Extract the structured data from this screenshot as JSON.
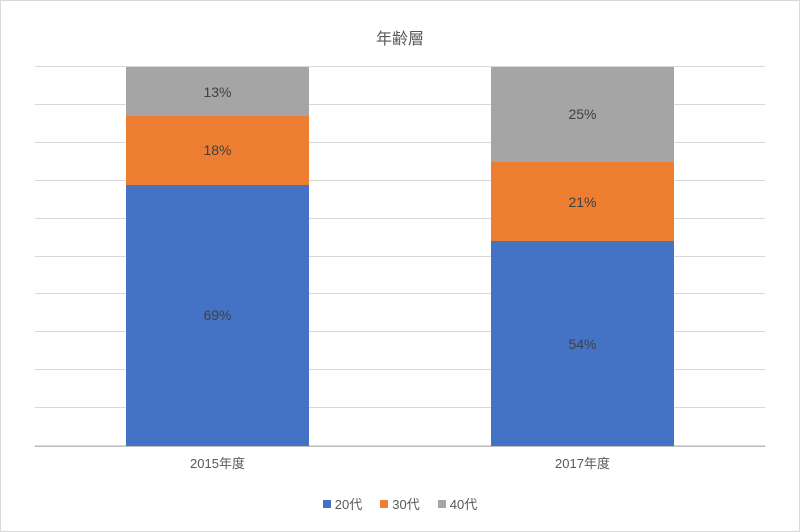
{
  "chart": {
    "type": "stacked-bar-100",
    "title": "年齢層",
    "title_fontsize": 16,
    "title_color": "#595959",
    "background_color": "#ffffff",
    "frame_border_color": "#d9d9d9",
    "grid_color": "#d9d9d9",
    "axis_line_color": "#bfbfbf",
    "label_color": "#595959",
    "data_label_color": "#404040",
    "label_fontsize": 13,
    "data_label_fontsize": 14,
    "ylim": [
      0,
      100
    ],
    "ytick_step": 10,
    "bar_width_pct": 50,
    "categories": [
      "2015年度",
      "2017年度"
    ],
    "series": [
      {
        "name": "20代",
        "color": "#4472c4",
        "values": [
          69,
          54
        ]
      },
      {
        "name": "30代",
        "color": "#ed7d31",
        "values": [
          18,
          21
        ]
      },
      {
        "name": "40代",
        "color": "#a5a5a5",
        "values": [
          13,
          25
        ]
      }
    ],
    "value_suffix": "%",
    "legend_square_size": 8
  }
}
